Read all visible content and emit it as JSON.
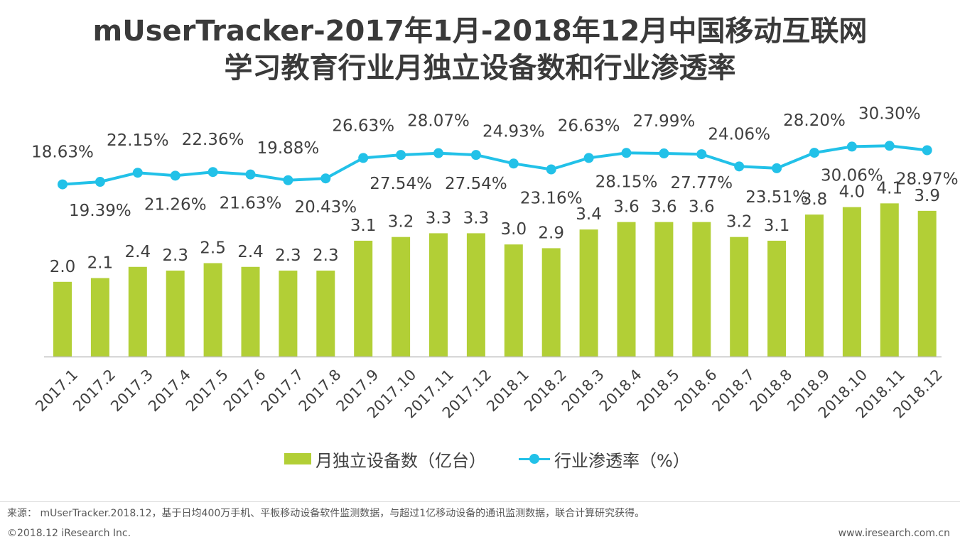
{
  "title": {
    "line1": "mUserTracker-2017年1月-2018年12月中国移动互联网",
    "line2": "学习教育行业月独立设备数和行业渗透率"
  },
  "chart_data": {
    "type": "bar",
    "categories": [
      "2017.1",
      "2017.2",
      "2017.3",
      "2017.4",
      "2017.5",
      "2017.6",
      "2017.7",
      "2017.8",
      "2017.9",
      "2017.10",
      "2017.11",
      "2017.12",
      "2018.1",
      "2018.2",
      "2018.3",
      "2018.4",
      "2018.5",
      "2018.6",
      "2018.7",
      "2018.8",
      "2018.9",
      "2018.10",
      "2018.11",
      "2018.12"
    ],
    "series": [
      {
        "name": "月独立设备数（亿台）",
        "type": "bar",
        "values": [
          2.0,
          2.1,
          2.4,
          2.3,
          2.5,
          2.4,
          2.3,
          2.3,
          3.1,
          3.2,
          3.3,
          3.3,
          3.0,
          2.9,
          3.4,
          3.6,
          3.6,
          3.6,
          3.2,
          3.1,
          3.8,
          4.0,
          4.1,
          3.9
        ],
        "labels": [
          "2.0",
          "2.1",
          "2.4",
          "2.3",
          "2.5",
          "2.4",
          "2.3",
          "2.3",
          "3.1",
          "3.2",
          "3.3",
          "3.3",
          "3.0",
          "2.9",
          "3.4",
          "3.6",
          "3.6",
          "3.6",
          "3.2",
          "3.1",
          "3.8",
          "4.0",
          "4.1",
          "3.9"
        ],
        "color": "#b2cf36"
      },
      {
        "name": "行业渗透率（%）",
        "type": "line",
        "values": [
          18.63,
          19.39,
          22.15,
          21.26,
          22.36,
          21.63,
          19.88,
          20.43,
          26.63,
          27.54,
          28.07,
          27.54,
          24.93,
          23.16,
          26.63,
          28.15,
          27.99,
          27.77,
          24.06,
          23.51,
          28.2,
          30.06,
          30.3,
          28.97
        ],
        "labels": [
          "18.63%",
          "19.39%",
          "22.15%",
          "21.26%",
          "22.36%",
          "21.63%",
          "19.88%",
          "20.43%",
          "26.63%",
          "27.54%",
          "28.07%",
          "27.54%",
          "24.93%",
          "23.16%",
          "26.63%",
          "28.15%",
          "27.99%",
          "27.77%",
          "24.06%",
          "23.51%",
          "28.20%",
          "30.06%",
          "30.30%",
          "28.97%"
        ],
        "label_positions": [
          "above",
          "below",
          "above",
          "below",
          "above",
          "below",
          "above",
          "below",
          "above",
          "below",
          "above",
          "below",
          "above",
          "below",
          "above",
          "below",
          "above",
          "below",
          "above",
          "below",
          "above",
          "below",
          "above",
          "below"
        ],
        "color": "#22c1e8"
      }
    ],
    "legend_position": "bottom-center",
    "grid": false
  },
  "source": "来源： mUserTracker.2018.12，基于日均400万手机、平板移动设备软件监测数据，与超过1亿移动设备的通讯监测数据，联合计算研究获得。",
  "copyright": "©2018.12 iResearch Inc.",
  "website": "www.iresearch.com.cn"
}
